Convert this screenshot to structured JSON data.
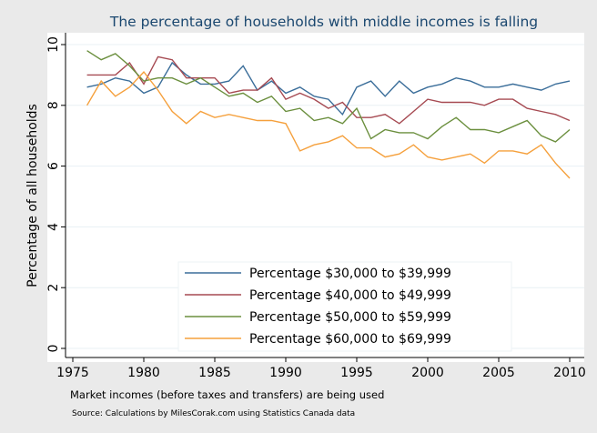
{
  "chart_data": {
    "type": "line",
    "title": "The percentage of households with middle incomes is falling",
    "xlabel": "",
    "ylabel": "Percentage of all households",
    "note": "Market incomes (before taxes and transfers) are being used",
    "source": "Source: Calculations by MilesCorak.com using Statistics Canada data",
    "xlim": [
      1975,
      2010
    ],
    "ylim": [
      0,
      10
    ],
    "xticks": [
      1975,
      1980,
      1985,
      1990,
      1995,
      2000,
      2005,
      2010
    ],
    "yticks": [
      0,
      2,
      4,
      6,
      8,
      10
    ],
    "grid": true,
    "legend_placement": "bottom-center-inside",
    "x": [
      1976,
      1977,
      1978,
      1979,
      1980,
      1981,
      1982,
      1983,
      1984,
      1985,
      1986,
      1987,
      1988,
      1989,
      1990,
      1991,
      1992,
      1993,
      1994,
      1995,
      1996,
      1997,
      1998,
      1999,
      2000,
      2001,
      2002,
      2003,
      2004,
      2005,
      2006,
      2007,
      2008,
      2009,
      2010
    ],
    "series": [
      {
        "name": "Percentage $30,000 to $39,999",
        "color": "#3b6e9a",
        "values": [
          8.6,
          8.7,
          8.9,
          8.8,
          8.4,
          8.6,
          9.4,
          9.0,
          8.7,
          8.7,
          8.8,
          9.3,
          8.5,
          8.8,
          8.4,
          8.6,
          8.3,
          8.2,
          7.7,
          8.6,
          8.8,
          8.3,
          8.8,
          8.4,
          8.6,
          8.7,
          8.9,
          8.8,
          8.6,
          8.6,
          8.7,
          8.6,
          8.5,
          8.7,
          8.8
        ]
      },
      {
        "name": "Percentage $40,000 to $49,999",
        "color": "#a64a52",
        "values": [
          9.0,
          9.0,
          9.0,
          9.4,
          8.7,
          9.6,
          9.5,
          8.9,
          8.9,
          8.9,
          8.4,
          8.5,
          8.5,
          8.9,
          8.2,
          8.4,
          8.2,
          7.9,
          8.1,
          7.6,
          7.6,
          7.7,
          7.4,
          7.8,
          8.2,
          8.1,
          8.1,
          8.1,
          8.0,
          8.2,
          8.2,
          7.9,
          7.8,
          7.7,
          7.5
        ]
      },
      {
        "name": "Percentage $50,000 to $59,999",
        "color": "#6b8f3e",
        "values": [
          9.8,
          9.5,
          9.7,
          9.3,
          8.8,
          8.9,
          8.9,
          8.7,
          8.9,
          8.6,
          8.3,
          8.4,
          8.1,
          8.3,
          7.8,
          7.9,
          7.5,
          7.6,
          7.4,
          7.9,
          6.9,
          7.2,
          7.1,
          7.1,
          6.9,
          7.3,
          7.6,
          7.2,
          7.2,
          7.1,
          7.3,
          7.5,
          7.0,
          6.8,
          7.2
        ]
      },
      {
        "name": "Percentage $60,000 to $69,999",
        "color": "#f5a03c",
        "values": [
          8.0,
          8.8,
          8.3,
          8.6,
          9.1,
          8.5,
          7.8,
          7.4,
          7.8,
          7.6,
          7.7,
          7.6,
          7.5,
          7.5,
          7.4,
          6.5,
          6.7,
          6.8,
          7.0,
          6.6,
          6.6,
          6.3,
          6.4,
          6.7,
          6.3,
          6.2,
          6.3,
          6.4,
          6.1,
          6.5,
          6.5,
          6.4,
          6.7,
          6.1,
          5.6
        ]
      }
    ],
    "colors": {
      "title": "#1a476f",
      "background": "#eaeaea",
      "plot_background": "#ffffff",
      "grid": "#e8f0f4"
    }
  }
}
